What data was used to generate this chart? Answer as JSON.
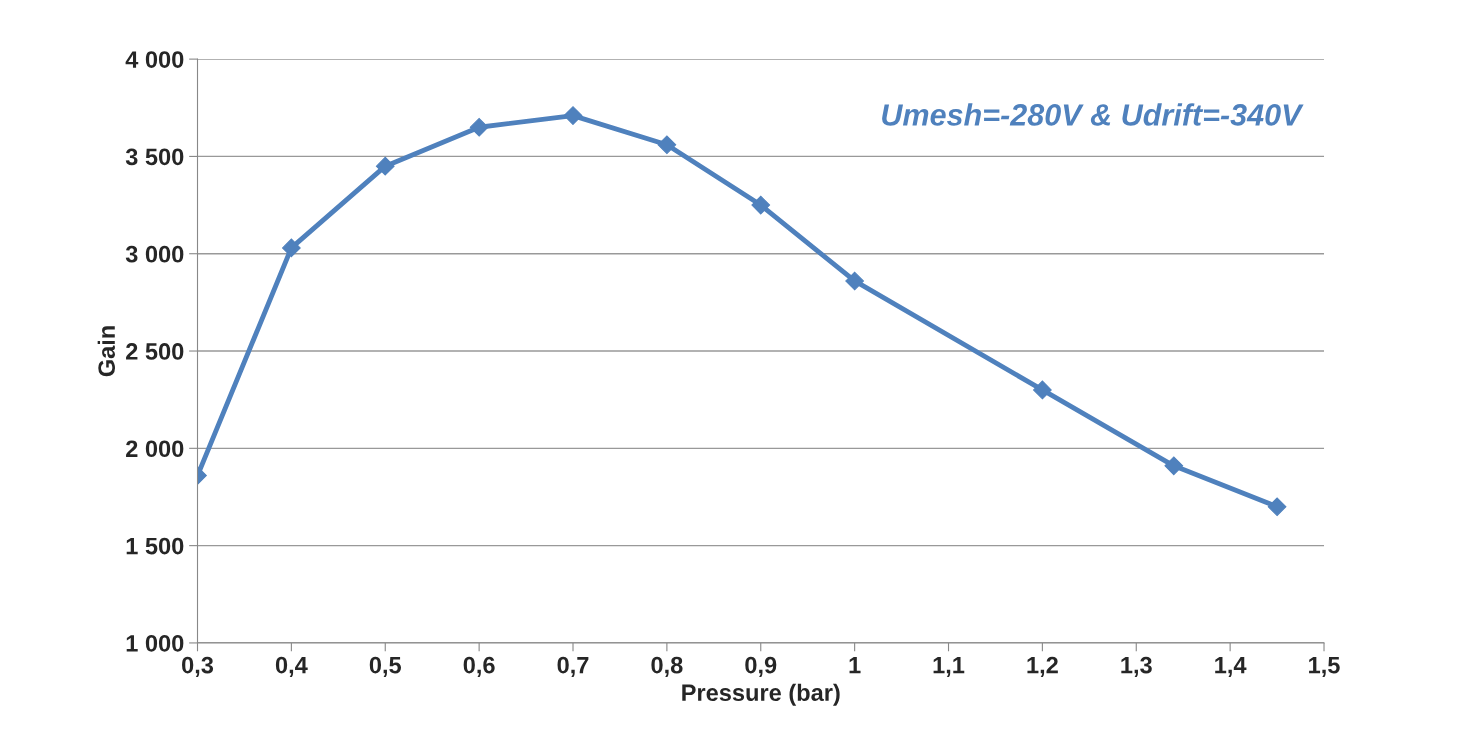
{
  "chart_data": {
    "type": "line",
    "xlabel": "Pressure (bar)",
    "ylabel": "Gain",
    "annotations": [
      "Umesh=-280V & Udrift=-340V"
    ],
    "series": [
      {
        "color": "#4f81bd",
        "x": [
          0.3,
          0.4,
          0.5,
          0.6,
          0.7,
          0.8,
          0.9,
          1.0,
          1.2,
          1.34,
          1.45
        ],
        "values": [
          1860,
          3030,
          3450,
          3650,
          3710,
          3560,
          3250,
          2860,
          2300,
          1910,
          1700
        ]
      }
    ],
    "xlim": [
      0.3,
      1.5
    ],
    "xticks": [
      {
        "value": 0.3,
        "label": "0,3"
      },
      {
        "value": 0.4,
        "label": "0,4"
      },
      {
        "value": 0.5,
        "label": "0,5"
      },
      {
        "value": 0.6,
        "label": "0,6"
      },
      {
        "value": 0.7,
        "label": "0,7"
      },
      {
        "value": 0.8,
        "label": "0,8"
      },
      {
        "value": 0.9,
        "label": "0,9"
      },
      1,
      {
        "value": 1.1,
        "label": "1,1"
      },
      {
        "value": 1.2,
        "label": "1,2"
      },
      {
        "value": 1.3,
        "label": "1,3"
      },
      {
        "value": 1.4,
        "label": "1,4"
      },
      {
        "value": 1.5,
        "label": "1,5"
      }
    ],
    "ylim": [
      1000,
      4000
    ],
    "yticks": [
      {
        "value": 1000,
        "label": "1 000"
      },
      {
        "value": 1500,
        "label": "1 500"
      },
      {
        "value": 2000,
        "label": "2 000"
      },
      {
        "value": 2500,
        "label": "2 500"
      },
      {
        "value": 3000,
        "label": "3 000"
      },
      {
        "value": 3500,
        "label": "3 500"
      },
      {
        "value": 4000,
        "label": "4 000"
      }
    ],
    "grid": "y",
    "marker": "diamond",
    "line_style": "solid",
    "legend": false
  }
}
